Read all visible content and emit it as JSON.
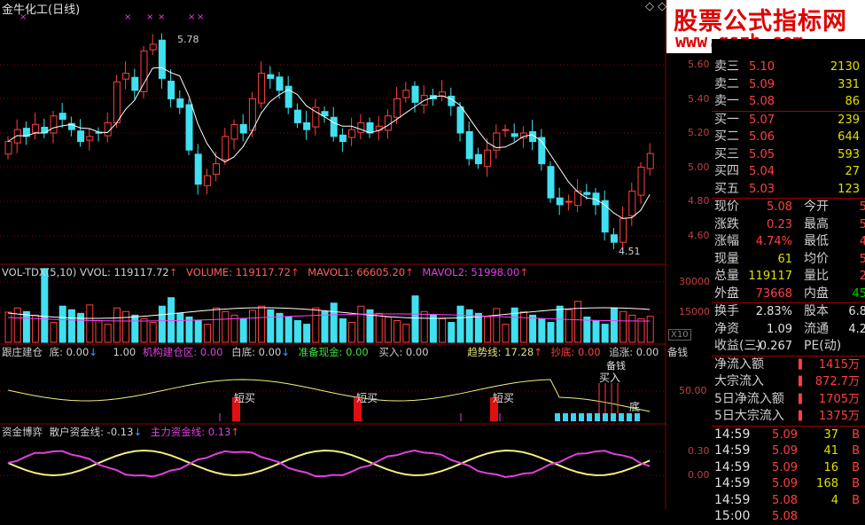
{
  "title": "金牛化工(日线)",
  "watermark": {
    "line1": "股票公式指标网",
    "line2": "www.gszb.com"
  },
  "price_panel": {
    "axis_ticks": [
      "5.60",
      "5.40",
      "5.20",
      "5.00",
      "4.80",
      "4.60"
    ],
    "high_label": "5.78",
    "low_label": "4.51",
    "top_markers": [
      "×",
      "×",
      "×",
      "×",
      "×"
    ]
  },
  "vol_panel": {
    "header": {
      "name": "VOL-TDX(5,10)",
      "vol": "VVOL: 119117.72",
      "volume": "VOLUME: 119117.72",
      "mavol1": "MAVOL1: 66605.20",
      "mavol2": "MAVOL2: 51998.00"
    },
    "axis_ticks": [
      "30000",
      "15000"
    ],
    "unit": "X10"
  },
  "ind1_panel": {
    "header": [
      "跟庄建仓",
      "底: 0.00",
      "1.00",
      "机构建仓区: 0.00",
      "白底: 0.00",
      "准备现金: 0.00",
      "买入: 0.00",
      "趋势线: 17.28",
      "抄底: 0.00",
      "追涨: 0.00",
      "备钱"
    ],
    "axis_ticks": [
      "50.00"
    ],
    "labels": {
      "duan1": "短买",
      "duan2": "短买",
      "duan3": "短买",
      "buy": "买入",
      "bottom": "底",
      "beiqian": "备钱"
    }
  },
  "ind2_panel": {
    "header": {
      "name": "资金博弈",
      "retail": "散户资金线: -0.13",
      "main": "主力资金线: 0.13"
    },
    "axis_ticks": [
      "0.30",
      "0.00"
    ]
  },
  "quote": {
    "sell": [
      {
        "label": "卖三",
        "price": "5.10",
        "vol": "2130"
      },
      {
        "label": "卖二",
        "price": "5.09",
        "vol": "331"
      },
      {
        "label": "卖一",
        "price": "5.08",
        "vol": "86"
      }
    ],
    "buy": [
      {
        "label": "买一",
        "price": "5.07",
        "vol": "239"
      },
      {
        "label": "买二",
        "price": "5.06",
        "vol": "644"
      },
      {
        "label": "买三",
        "price": "5.05",
        "vol": "593"
      },
      {
        "label": "买四",
        "price": "5.04",
        "vol": "27"
      },
      {
        "label": "买五",
        "price": "5.03",
        "vol": "123"
      }
    ],
    "stats": [
      {
        "l1": "现价",
        "v1": "5.08",
        "l2": "今开",
        "v2": "5"
      },
      {
        "l1": "涨跌",
        "v1": "0.23",
        "l2": "最高",
        "v2": "5"
      },
      {
        "l1": "涨幅",
        "v1": "4.74%",
        "l2": "最低",
        "v2": "4"
      },
      {
        "l1": "现量",
        "v1": "61",
        "l2": "均价",
        "v2": "5"
      },
      {
        "l1": "总量",
        "v1": "119117",
        "l2": "量比",
        "v2": "2"
      },
      {
        "l1": "外盘",
        "v1": "73668",
        "l2": "内盘",
        "v2": "45"
      }
    ],
    "stats2": [
      {
        "l1": "换手",
        "v1": "2.83%",
        "l2": "股本",
        "v2": "6.8"
      },
      {
        "l1": "净资",
        "v1": "1.09",
        "l2": "流通",
        "v2": "4.2"
      },
      {
        "l1": "收益(三)",
        "v1": "-0.267",
        "l2": "PE(动)",
        "v2": ""
      }
    ],
    "flows": [
      {
        "label": "净流入额",
        "value": "1415万"
      },
      {
        "label": "大宗流入",
        "value": "872.7万"
      },
      {
        "label": "5日净流入额",
        "value": "1705万"
      },
      {
        "label": "5日大宗流入",
        "value": "1375万"
      }
    ],
    "ticks": [
      {
        "time": "14:59",
        "price": "5.09",
        "vol": "37",
        "side": "B"
      },
      {
        "time": "14:59",
        "price": "5.09",
        "vol": "41",
        "side": "B"
      },
      {
        "time": "14:59",
        "price": "5.09",
        "vol": "16",
        "side": "B"
      },
      {
        "time": "14:59",
        "price": "5.09",
        "vol": "168",
        "side": "B"
      },
      {
        "time": "14:59",
        "price": "5.08",
        "vol": "4",
        "side": "B"
      },
      {
        "time": "15:00",
        "price": "5.08",
        "vol": "",
        "side": ""
      }
    ]
  },
  "colors": {
    "up": "#ff4040",
    "down": "#40e0f0",
    "grid": "#8b0000",
    "ma1": "#ffffff",
    "ma2": "#ff40ff",
    "yellow": "#f0f080",
    "magenta": "#e040e0"
  }
}
